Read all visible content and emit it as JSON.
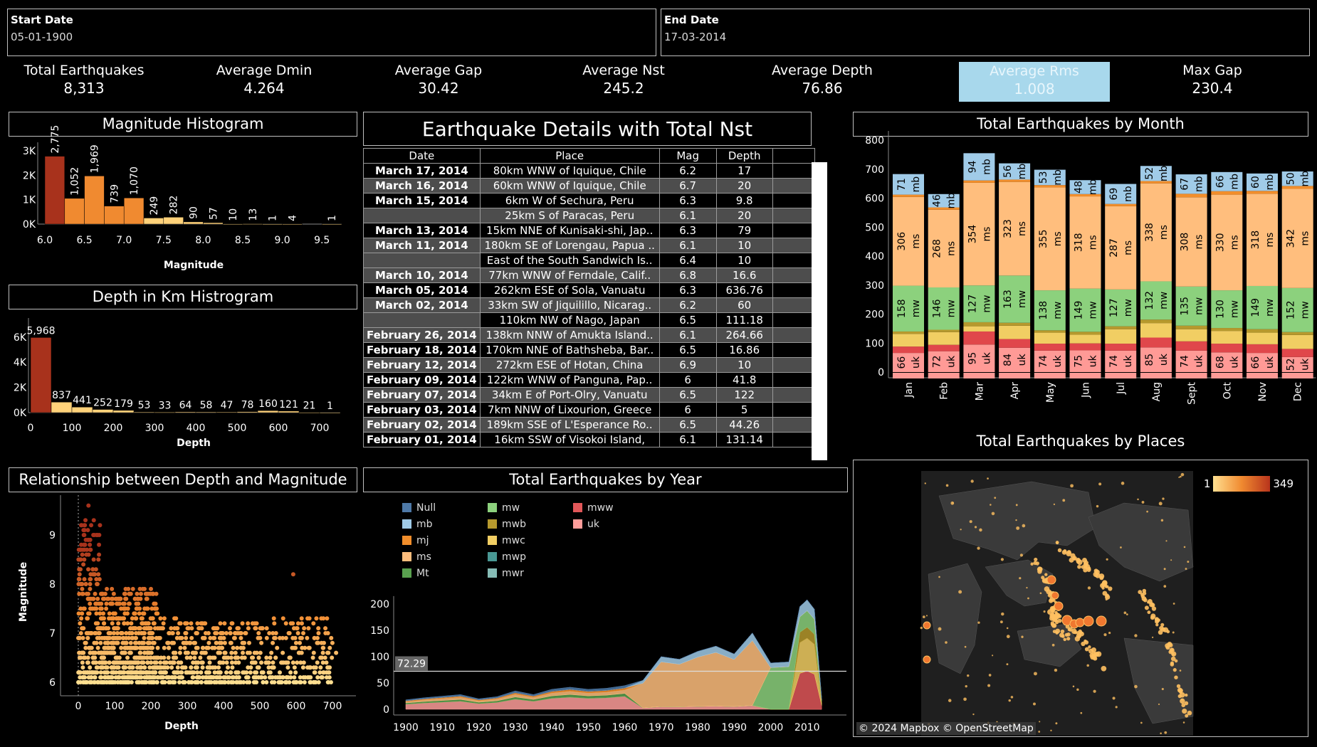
{
  "filters": {
    "start": {
      "label": "Start Date",
      "value": "05-01-1900"
    },
    "end": {
      "label": "End Date",
      "value": "17-03-2014"
    }
  },
  "kpis": [
    {
      "label": "Total Earthquakes",
      "value": "8,313"
    },
    {
      "label": "Average Dmin",
      "value": "4.264"
    },
    {
      "label": "Average Gap",
      "value": "30.42"
    },
    {
      "label": "Average Nst",
      "value": "245.2"
    },
    {
      "label": "Average Depth",
      "value": "76.86"
    },
    {
      "label": "Average Rms",
      "value": "1.008"
    },
    {
      "label": "Max Gap",
      "value": "230.4"
    }
  ],
  "titles": {
    "mag_hist": "Magnitude Histogram",
    "depth_hist": "Depth in Km Histrogram",
    "scatter": "Relationship between Depth and Magnitude",
    "table": "Earthquake Details with Total Nst",
    "by_year": "Total Earthquakes by Year",
    "by_month": "Total Earthquakes by Month",
    "by_places": "Total Earthquakes by Places"
  },
  "table": {
    "headers": [
      "Date",
      "Place",
      "Mag",
      "Depth"
    ],
    "rows": [
      {
        "date": "March 17, 2014",
        "place": "80km WNW of Iquique, Chile",
        "mag": "6.2",
        "depth": "17"
      },
      {
        "date": "March 16, 2014",
        "place": "60km WNW of Iquique, Chile",
        "mag": "6.7",
        "depth": "20"
      },
      {
        "date": "March 15, 2014",
        "place": "6km W of Sechura, Peru",
        "mag": "6.3",
        "depth": "9.8"
      },
      {
        "date": "",
        "place": "25km S of Paracas, Peru",
        "mag": "6.1",
        "depth": "20"
      },
      {
        "date": "March 13, 2014",
        "place": "15km NNE of Kunisaki-shi, Jap..",
        "mag": "6.3",
        "depth": "79"
      },
      {
        "date": "March 11, 2014",
        "place": "180km SE of Lorengau, Papua ..",
        "mag": "6.1",
        "depth": "10"
      },
      {
        "date": "",
        "place": "East of the South Sandwich Is..",
        "mag": "6.4",
        "depth": "10"
      },
      {
        "date": "March 10, 2014",
        "place": "77km WNW of Ferndale, Calif..",
        "mag": "6.8",
        "depth": "16.6"
      },
      {
        "date": "March 05, 2014",
        "place": "262km ESE of Sola, Vanuatu",
        "mag": "6.3",
        "depth": "636.76"
      },
      {
        "date": "March 02, 2014",
        "place": "33km SW of Jiquilillo, Nicarag..",
        "mag": "6.2",
        "depth": "60"
      },
      {
        "date": "",
        "place": "110km NW of Nago, Japan",
        "mag": "6.5",
        "depth": "111.18"
      },
      {
        "date": "February 26, 2014",
        "place": "138km NNW of Amukta Island..",
        "mag": "6.1",
        "depth": "264.66"
      },
      {
        "date": "February 18, 2014",
        "place": "170km NNE of Bathsheba, Bar..",
        "mag": "6.5",
        "depth": "16.86"
      },
      {
        "date": "February 12, 2014",
        "place": "272km ESE of Hotan, China",
        "mag": "6.9",
        "depth": "10"
      },
      {
        "date": "February 09, 2014",
        "place": "122km WNW of Panguna, Pap..",
        "mag": "6",
        "depth": "41.8"
      },
      {
        "date": "February 07, 2014",
        "place": "34km E of Port-Olry, Vanuatu",
        "mag": "6.5",
        "depth": "122"
      },
      {
        "date": "February 03, 2014",
        "place": "7km NNW of Lixourion, Greece",
        "mag": "6",
        "depth": "5"
      },
      {
        "date": "February 02, 2014",
        "place": "189km SSE of L'Esperance Ro..",
        "mag": "6.5",
        "depth": "44.26"
      },
      {
        "date": "February 01, 2014",
        "place": "16km SSW of Visokoi Island,",
        "mag": "6.1",
        "depth": "131.14"
      }
    ]
  },
  "map": {
    "attribution": "© 2024 Mapbox © OpenStreetMap",
    "legend_min": "1",
    "legend_max": "349"
  },
  "chart_data": [
    {
      "type": "bar",
      "title": "Magnitude Histogram",
      "xlabel": "Magnitude",
      "ylabel": "",
      "bin_starts": [
        6.0,
        6.25,
        6.5,
        6.75,
        7.0,
        7.25,
        7.5,
        7.75,
        8.0,
        8.25,
        8.5,
        8.75,
        9.0,
        9.25,
        9.5
      ],
      "values": [
        2775,
        1052,
        1969,
        739,
        1070,
        249,
        282,
        90,
        57,
        10,
        13,
        1,
        4,
        0,
        1
      ],
      "labels": [
        "2,775",
        "1,052",
        "1,969",
        "739",
        "1,070",
        "249",
        "282",
        "90",
        "57",
        "10",
        "13",
        "1",
        "4",
        "",
        "1"
      ],
      "xticks": [
        "6.0",
        "6.5",
        "7.0",
        "7.5",
        "8.0",
        "8.5",
        "9.0",
        "9.5"
      ],
      "yticks": [
        "0K",
        "1K",
        "2K",
        "3K"
      ],
      "ylim": [
        0,
        3200
      ]
    },
    {
      "type": "bar",
      "title": "Depth in Km Histrogram",
      "xlabel": "Depth",
      "ylabel": "",
      "bin_starts": [
        0,
        50,
        100,
        150,
        200,
        250,
        300,
        350,
        400,
        450,
        500,
        550,
        600,
        650,
        700
      ],
      "values": [
        5968,
        837,
        441,
        252,
        179,
        53,
        33,
        64,
        58,
        47,
        78,
        160,
        121,
        21,
        1
      ],
      "labels": [
        "5,968",
        "837",
        "441",
        "252",
        "179",
        "53",
        "33",
        "64",
        "58",
        "47",
        "78",
        "160",
        "121",
        "21",
        "1"
      ],
      "xticks": [
        "0",
        "100",
        "200",
        "300",
        "400",
        "500",
        "600",
        "700"
      ],
      "yticks": [
        "0K",
        "2K",
        "4K",
        "6K"
      ],
      "ylim": [
        0,
        6500
      ]
    },
    {
      "type": "scatter",
      "title": "Relationship between Depth and Magnitude",
      "xlabel": "Depth",
      "ylabel": "Magnitude",
      "xlim": [
        -20,
        730
      ],
      "ylim": [
        5.8,
        9.7
      ],
      "xticks": [
        "0",
        "100",
        "200",
        "300",
        "400",
        "500",
        "600",
        "700"
      ],
      "yticks": [
        "6",
        "7",
        "8",
        "9"
      ],
      "point_count": 8313
    },
    {
      "type": "bar",
      "stacked": true,
      "title": "Total Earthquakes by Month",
      "categories": [
        "Jan",
        "Feb",
        "Mar",
        "Apr",
        "May",
        "Jun",
        "Jul",
        "Aug",
        "Sept",
        "Oct",
        "Nov",
        "Dec"
      ],
      "series": [
        {
          "name": "uk",
          "values": [
            66,
            72,
            95,
            84,
            74,
            75,
            74,
            85,
            74,
            68,
            66,
            52
          ],
          "color": "#ff9a96"
        },
        {
          "name": "mww",
          "values": [
            22,
            22,
            45,
            30,
            24,
            24,
            24,
            34,
            32,
            30,
            30,
            28
          ],
          "color": "#e0474b"
        },
        {
          "name": "mwc",
          "values": [
            44,
            44,
            18,
            46,
            38,
            30,
            50,
            50,
            42,
            44,
            40,
            48
          ],
          "color": "#f1ce63"
        },
        {
          "name": "mwb",
          "values": [
            8,
            8,
            14,
            10,
            8,
            10,
            10,
            12,
            12,
            10,
            12,
            10
          ],
          "color": "#b6992d"
        },
        {
          "name": "mw",
          "values": [
            158,
            146,
            127,
            163,
            138,
            149,
            127,
            132,
            135,
            130,
            149,
            152
          ],
          "color": "#8cd17d"
        },
        {
          "name": "ms",
          "values": [
            306,
            268,
            354,
            323,
            355,
            318,
            287,
            338,
            308,
            330,
            318,
            342
          ],
          "color": "#ffbe7d"
        },
        {
          "name": "mj",
          "values": [
            8,
            8,
            8,
            8,
            8,
            8,
            8,
            8,
            12,
            12,
            10,
            10
          ],
          "color": "#f28e2b"
        },
        {
          "name": "mb",
          "values": [
            71,
            46,
            94,
            56,
            53,
            48,
            69,
            52,
            67,
            66,
            60,
            50
          ],
          "color": "#a0cbe8"
        }
      ],
      "ylim": [
        0,
        800
      ],
      "yticks": [
        "0",
        "100",
        "200",
        "300",
        "400",
        "500",
        "600",
        "700",
        "800"
      ]
    },
    {
      "type": "area",
      "stacked": true,
      "title": "Total Earthquakes by Year",
      "xlabel": "",
      "ylabel": "",
      "x": [
        1900,
        1905,
        1910,
        1915,
        1920,
        1925,
        1930,
        1935,
        1940,
        1945,
        1950,
        1955,
        1960,
        1965,
        1970,
        1975,
        1980,
        1985,
        1990,
        1995,
        2000,
        2005,
        2008,
        2010,
        2012,
        2014
      ],
      "series": [
        {
          "name": "Null",
          "color": "#4e79a7"
        },
        {
          "name": "mb",
          "color": "#a0cbe8"
        },
        {
          "name": "mj",
          "color": "#f28e2b"
        },
        {
          "name": "ms",
          "color": "#ffbe7d"
        },
        {
          "name": "Mt",
          "color": "#59a14f"
        },
        {
          "name": "mw",
          "color": "#8cd17d"
        },
        {
          "name": "mwb",
          "color": "#b6992d"
        },
        {
          "name": "mwc",
          "color": "#f1ce63"
        },
        {
          "name": "mwp",
          "color": "#499894"
        },
        {
          "name": "mwr",
          "color": "#86bcb6"
        },
        {
          "name": "mww",
          "color": "#e15759"
        },
        {
          "name": "uk",
          "color": "#ff9d9a"
        }
      ],
      "totals": [
        18,
        22,
        25,
        28,
        20,
        24,
        35,
        28,
        38,
        42,
        38,
        40,
        45,
        55,
        100,
        95,
        110,
        120,
        105,
        145,
        88,
        90,
        195,
        208,
        190,
        20
      ],
      "reference_line": {
        "value": 72.29,
        "label": "72.29"
      },
      "ylim": [
        0,
        215
      ],
      "yticks": [
        "0",
        "50",
        "100",
        "150",
        "200"
      ],
      "xticks": [
        "1900",
        "1910",
        "1920",
        "1930",
        "1940",
        "1950",
        "1960",
        "1970",
        "1980",
        "1990",
        "2000",
        "2010"
      ]
    }
  ]
}
